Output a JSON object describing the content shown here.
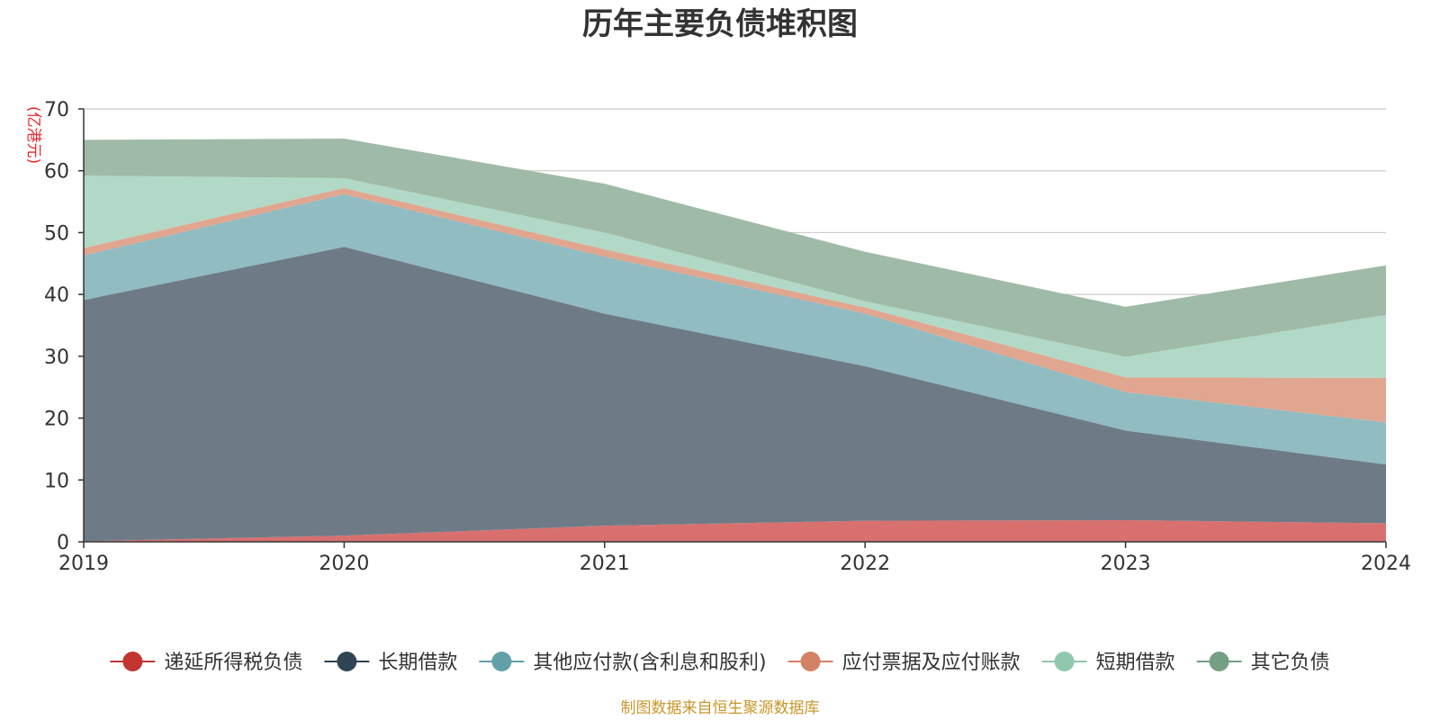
{
  "chart_data": {
    "type": "area",
    "stacked": true,
    "title": "历年主要负债堆积图",
    "unit_label": "(亿港元)",
    "source": "制图数据来自恒生聚源数据库",
    "x": [
      "2019",
      "2020",
      "2021",
      "2022",
      "2023",
      "2024"
    ],
    "ylim": [
      0,
      70
    ],
    "yticks": [
      "0",
      "10",
      "20",
      "30",
      "40",
      "50",
      "60",
      "70"
    ],
    "grid": true,
    "legend_position": "bottom",
    "series": [
      {
        "name": "递延所得税负债",
        "color": "#c23531",
        "area_color": "#d87070",
        "values": [
          0.1,
          1.0,
          2.6,
          3.4,
          3.5,
          3.0
        ]
      },
      {
        "name": "长期借款",
        "color": "#2f4554",
        "area_color": "#6e7b87",
        "values": [
          39.0,
          46.7,
          34.3,
          25.0,
          14.5,
          9.5
        ]
      },
      {
        "name": "其他应付款(含利息和股利)",
        "color": "#61a0a8",
        "area_color": "#90bcc2",
        "values": [
          7.2,
          8.5,
          9.2,
          8.5,
          6.2,
          6.8
        ]
      },
      {
        "name": "应付票据及应付账款",
        "color": "#d48265",
        "area_color": "#e0a690",
        "values": [
          1.2,
          1.0,
          1.2,
          1.0,
          2.4,
          7.2
        ]
      },
      {
        "name": "短期借款",
        "color": "#91c7ae",
        "area_color": "#b2d9c7",
        "values": [
          11.7,
          1.6,
          2.7,
          1.0,
          3.3,
          10.2
        ]
      },
      {
        "name": "其它负债",
        "color": "#749f83",
        "area_color": "#9fbba7",
        "values": [
          5.8,
          6.4,
          7.9,
          8.0,
          8.1,
          8.0
        ]
      }
    ]
  }
}
